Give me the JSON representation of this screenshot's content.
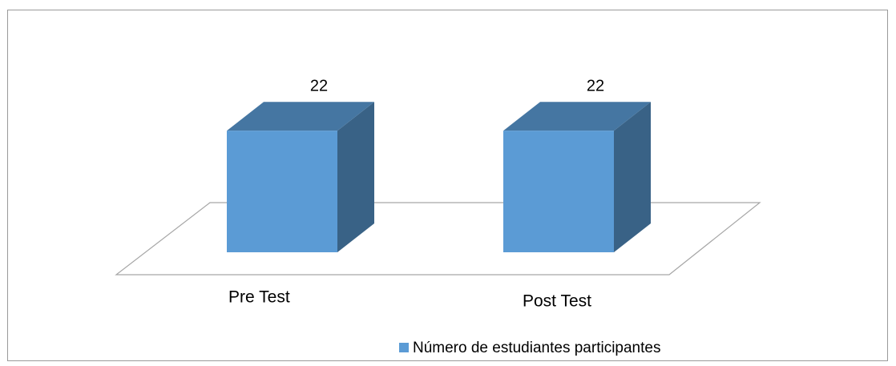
{
  "chart_data": {
    "type": "bar3d",
    "categories": [
      "Pre Test",
      "Post Test"
    ],
    "series": [
      {
        "name": "Número de estudiantes participantes",
        "color": "#5b9bd5",
        "values": [
          22,
          22
        ]
      }
    ],
    "ylim": [
      0,
      30
    ]
  }
}
